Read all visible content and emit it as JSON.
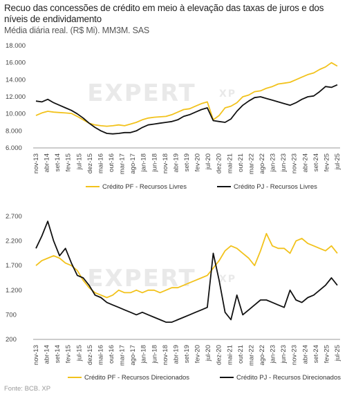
{
  "header": {
    "title": "Recuo das concessões de crédito em meio à elevação das taxas de juros e dos níveis de endividamento",
    "subtitle": "Média diária real. (R$ Mi). MM3M. SAS"
  },
  "source": "Fonte: BCB. XP",
  "watermark": "EXPERT",
  "watermark_small": "XP",
  "colors": {
    "pf": "#f2c21b",
    "pj": "#111111"
  },
  "chart_data": [
    {
      "type": "line",
      "x_ticks": [
        "nov-13",
        "abr-14",
        "set-14",
        "fev-15",
        "jul-15",
        "dez-15",
        "mai-16",
        "out-16",
        "mar-17",
        "ago-17",
        "jan-18",
        "jun-18",
        "nov-18",
        "abr-19",
        "set-19",
        "fev-20",
        "jul-20",
        "dez-20",
        "mai-21",
        "out-21",
        "mar-22",
        "ago-22",
        "jan-23",
        "jun-23",
        "nov-23",
        "abr-24",
        "set-24",
        "fev-25",
        "jul-25"
      ],
      "ylim": [
        6000,
        18000
      ],
      "y_ticks": [
        "6.000",
        "8.000",
        "10.000",
        "12.000",
        "14.000",
        "16.000",
        "18.000"
      ],
      "grid": false,
      "legend_position": "bottom",
      "series": [
        {
          "name": "Crédito PF - Recursos Livres",
          "color_key": "pf",
          "values": [
            9800,
            10100,
            10300,
            10200,
            10150,
            10100,
            10050,
            9700,
            9300,
            8900,
            8700,
            8600,
            8550,
            8600,
            8700,
            8600,
            8800,
            9000,
            9300,
            9500,
            9600,
            9650,
            9700,
            9900,
            10200,
            10500,
            10600,
            10900,
            11200,
            11400,
            9300,
            9800,
            10700,
            10900,
            11300,
            12000,
            12200,
            12600,
            12700,
            13000,
            13200,
            13500,
            13600,
            13700,
            14000,
            14300,
            14600,
            14800,
            15200,
            15500,
            16000,
            15600
          ]
        },
        {
          "name": "Crédito PJ - Recursos Livres",
          "color_key": "pj",
          "values": [
            11500,
            11400,
            11700,
            11300,
            11000,
            10700,
            10400,
            10000,
            9500,
            8900,
            8400,
            8000,
            7700,
            7650,
            7700,
            7800,
            7800,
            8000,
            8400,
            8700,
            8800,
            8900,
            9000,
            9100,
            9300,
            9700,
            9900,
            10200,
            10500,
            10700,
            9200,
            9100,
            9000,
            9400,
            10300,
            11000,
            11500,
            11900,
            12000,
            11800,
            11600,
            11400,
            11200,
            11000,
            11300,
            11700,
            12000,
            12100,
            12600,
            13200,
            13100,
            13400
          ]
        }
      ]
    },
    {
      "type": "line",
      "x_ticks": [
        "nov-13",
        "abr-14",
        "set-14",
        "fev-15",
        "jul-15",
        "dez-15",
        "mai-16",
        "out-16",
        "mar-17",
        "ago-17",
        "jan-18",
        "jun-18",
        "nov-18",
        "abr-19",
        "set-19",
        "fev-20",
        "jul-20",
        "dez-20",
        "mai-21",
        "out-21",
        "mar-22",
        "ago-22",
        "jan-23",
        "jun-23",
        "nov-23",
        "abr-24",
        "set-24",
        "fev-25",
        "jul-25"
      ],
      "ylim": [
        200,
        2700
      ],
      "y_ticks": [
        "200",
        "700",
        "1.200",
        "1.700",
        "2.200",
        "2.700"
      ],
      "grid": false,
      "legend_position": "bottom",
      "series": [
        {
          "name": "Crédito PF - Recursos Direcionados",
          "color_key": "pf",
          "values": [
            1700,
            1800,
            1850,
            1900,
            1850,
            1750,
            1700,
            1600,
            1400,
            1250,
            1150,
            1100,
            1050,
            1100,
            1200,
            1150,
            1150,
            1200,
            1150,
            1200,
            1200,
            1150,
            1200,
            1250,
            1250,
            1300,
            1350,
            1400,
            1450,
            1500,
            1650,
            1800,
            2000,
            2100,
            2050,
            1950,
            1850,
            1700,
            2000,
            2350,
            2100,
            2050,
            2050,
            1950,
            2200,
            2250,
            2150,
            2100,
            2050,
            2000,
            2100,
            1950
          ]
        },
        {
          "name": "Crédito PJ - Recursos Direcionados",
          "color_key": "pj",
          "values": [
            2050,
            2300,
            2600,
            2200,
            1900,
            2050,
            1750,
            1500,
            1450,
            1300,
            1100,
            1050,
            950,
            900,
            850,
            800,
            750,
            700,
            750,
            700,
            650,
            600,
            550,
            550,
            600,
            650,
            700,
            750,
            800,
            850,
            1950,
            1400,
            750,
            600,
            1100,
            700,
            800,
            900,
            1000,
            1000,
            950,
            900,
            850,
            1200,
            1000,
            950,
            1050,
            1100,
            1200,
            1300,
            1450,
            1300
          ]
        }
      ]
    }
  ]
}
